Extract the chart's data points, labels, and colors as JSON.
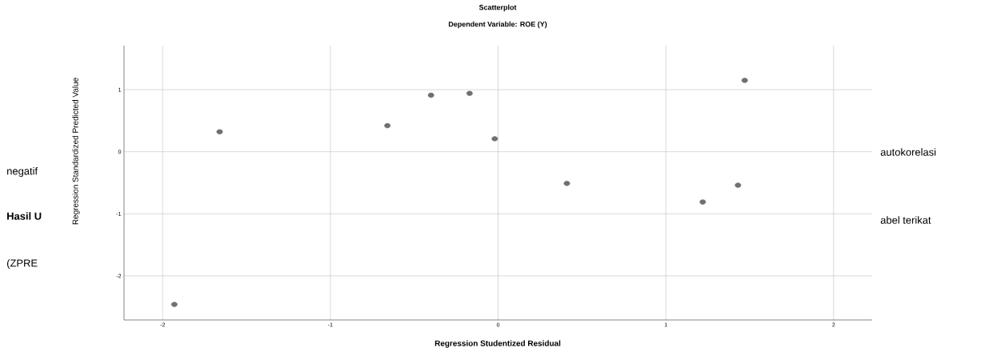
{
  "chart_data": {
    "type": "scatter",
    "title": "Scatterplot",
    "subtitle": "Dependent Variable: ROE (Y)",
    "xlabel": "Regression Studentized Residual",
    "ylabel": "Regression Standardized Predicted Value",
    "x": [
      -1.93,
      -1.66,
      -0.66,
      -0.4,
      -0.17,
      -0.02,
      0.41,
      1.22,
      1.43,
      1.47
    ],
    "values": [
      -2.46,
      0.32,
      0.42,
      0.91,
      0.94,
      0.21,
      -0.51,
      -0.81,
      -0.54,
      1.15
    ],
    "color": "#707070",
    "grid": true,
    "xlim": [
      -2.23,
      2.23
    ],
    "xticks": [
      -2,
      -1,
      0,
      1,
      2
    ],
    "ylim": [
      -2.71,
      1.71
    ],
    "yticks": [
      -2,
      -1,
      0,
      1
    ],
    "annotations": [
      "autokorelasi",
      "negatif",
      "**Hasil U**",
      "abel terikat",
      "(ZPRE"
    ]
  }
}
